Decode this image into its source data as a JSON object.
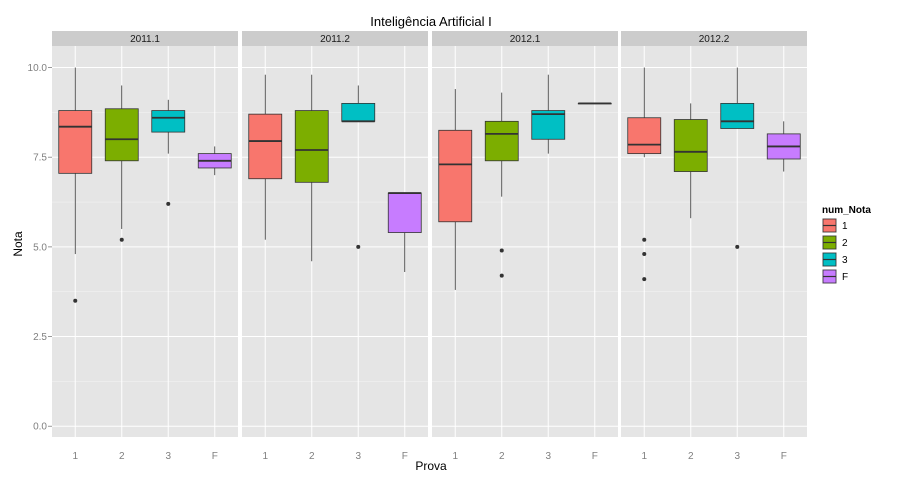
{
  "chart_data": {
    "type": "boxplot",
    "title": "Inteligência Artificial I",
    "xlabel": "Prova",
    "ylabel": "Nota",
    "ylim": [
      -0.3,
      10.6
    ],
    "yticks": [
      0,
      2.5,
      5,
      7.5,
      10
    ],
    "ytick_labels": [
      "0.0",
      "2.5",
      "5.0",
      "7.5",
      "10.0"
    ],
    "categories": [
      "1",
      "2",
      "3",
      "F"
    ],
    "grid": true,
    "legend": {
      "title": "num_Nota",
      "position": "right",
      "entries": [
        {
          "label": "1",
          "color": "#F8766D"
        },
        {
          "label": "2",
          "color": "#7CAE00"
        },
        {
          "label": "3",
          "color": "#00BFC4"
        },
        {
          "label": "F",
          "color": "#C77CFF"
        }
      ]
    },
    "panels": [
      {
        "name": "2011.1",
        "boxes": [
          {
            "category": "1",
            "min": 4.8,
            "q1": 7.05,
            "median": 8.35,
            "q3": 8.8,
            "max": 10.0,
            "outliers": [
              3.5
            ]
          },
          {
            "category": "2",
            "min": 5.5,
            "q1": 7.4,
            "median": 8.0,
            "q3": 8.85,
            "max": 9.5,
            "outliers": [
              5.2
            ]
          },
          {
            "category": "3",
            "min": 7.6,
            "q1": 8.2,
            "median": 8.6,
            "q3": 8.8,
            "max": 9.1,
            "outliers": [
              6.2
            ]
          },
          {
            "category": "F",
            "min": 7.0,
            "q1": 7.2,
            "median": 7.4,
            "q3": 7.6,
            "max": 7.8,
            "outliers": []
          }
        ]
      },
      {
        "name": "2011.2",
        "boxes": [
          {
            "category": "1",
            "min": 5.2,
            "q1": 6.9,
            "median": 7.95,
            "q3": 8.7,
            "max": 9.8,
            "outliers": []
          },
          {
            "category": "2",
            "min": 4.6,
            "q1": 6.8,
            "median": 7.7,
            "q3": 8.8,
            "max": 9.8,
            "outliers": []
          },
          {
            "category": "3",
            "min": 8.5,
            "q1": 8.5,
            "median": 8.5,
            "q3": 9.0,
            "max": 9.5,
            "outliers": [
              5.0
            ]
          },
          {
            "category": "F",
            "min": 4.3,
            "q1": 5.4,
            "median": 6.5,
            "q3": 6.5,
            "max": 6.5,
            "outliers": []
          }
        ]
      },
      {
        "name": "2012.1",
        "boxes": [
          {
            "category": "1",
            "min": 3.8,
            "q1": 5.7,
            "median": 7.3,
            "q3": 8.25,
            "max": 9.4,
            "outliers": []
          },
          {
            "category": "2",
            "min": 6.4,
            "q1": 7.4,
            "median": 8.15,
            "q3": 8.5,
            "max": 9.3,
            "outliers": [
              4.9,
              4.2
            ]
          },
          {
            "category": "3",
            "min": 7.6,
            "q1": 8.0,
            "median": 8.7,
            "q3": 8.8,
            "max": 9.8,
            "outliers": []
          },
          {
            "category": "F",
            "min": 9.0,
            "q1": 9.0,
            "median": 9.0,
            "q3": 9.0,
            "max": 9.0,
            "outliers": []
          }
        ]
      },
      {
        "name": "2012.2",
        "boxes": [
          {
            "category": "1",
            "min": 7.5,
            "q1": 7.6,
            "median": 7.85,
            "q3": 8.6,
            "max": 10.0,
            "outliers": [
              5.2,
              4.8,
              4.1
            ]
          },
          {
            "category": "2",
            "min": 5.8,
            "q1": 7.1,
            "median": 7.65,
            "q3": 8.55,
            "max": 9.0,
            "outliers": []
          },
          {
            "category": "3",
            "min": 8.3,
            "q1": 8.3,
            "median": 8.5,
            "q3": 9.0,
            "max": 10.0,
            "outliers": [
              5.0
            ]
          },
          {
            "category": "F",
            "min": 7.1,
            "q1": 7.45,
            "median": 7.8,
            "q3": 8.15,
            "max": 8.5,
            "outliers": []
          }
        ]
      }
    ]
  }
}
